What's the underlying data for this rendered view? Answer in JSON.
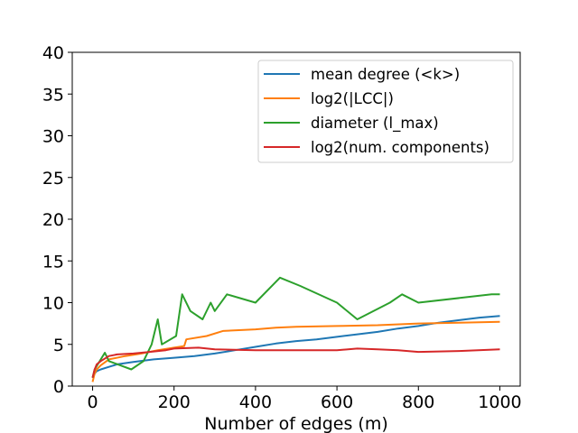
{
  "chart_data": {
    "type": "line",
    "title": "",
    "xlabel": "Number of edges (m)",
    "ylabel": "",
    "xlim": [
      -50,
      1050
    ],
    "ylim": [
      0,
      40
    ],
    "xticks": [
      0,
      200,
      400,
      600,
      800,
      1000
    ],
    "yticks": [
      0,
      5,
      10,
      15,
      20,
      25,
      30,
      35,
      40
    ],
    "grid": false,
    "legend_position": "top-right",
    "series": [
      {
        "name": "mean degree (<k>)",
        "color": "#1f77b4",
        "x": [
          0,
          5,
          10,
          20,
          40,
          60,
          100,
          150,
          200,
          250,
          300,
          350,
          400,
          450,
          500,
          550,
          600,
          650,
          700,
          750,
          800,
          850,
          900,
          950,
          1000
        ],
        "y": [
          1.0,
          1.5,
          1.8,
          2.0,
          2.3,
          2.6,
          2.9,
          3.2,
          3.4,
          3.6,
          3.9,
          4.3,
          4.7,
          5.1,
          5.4,
          5.6,
          5.9,
          6.2,
          6.5,
          6.9,
          7.2,
          7.6,
          7.9,
          8.2,
          8.4
        ]
      },
      {
        "name": "log2(|LCC|)",
        "color": "#ff7f0e",
        "x": [
          0,
          5,
          10,
          20,
          40,
          80,
          120,
          160,
          200,
          225,
          230,
          280,
          320,
          400,
          450,
          500,
          600,
          700,
          800,
          900,
          1000
        ],
        "y": [
          0.5,
          1.5,
          2.0,
          2.5,
          3.2,
          3.6,
          3.9,
          4.3,
          4.6,
          4.8,
          5.6,
          6.0,
          6.6,
          6.8,
          7.0,
          7.1,
          7.2,
          7.3,
          7.5,
          7.6,
          7.7
        ]
      },
      {
        "name": "diameter (l_max)",
        "color": "#2ca02c",
        "x": [
          0,
          5,
          30,
          40,
          95,
          125,
          145,
          160,
          170,
          205,
          220,
          240,
          270,
          290,
          300,
          330,
          400,
          460,
          510,
          600,
          650,
          730,
          760,
          800,
          980,
          1000
        ],
        "y": [
          1,
          2,
          4,
          3,
          2,
          3,
          5,
          8,
          5,
          6,
          11,
          9,
          8,
          10,
          9,
          11,
          10,
          13,
          12,
          10,
          8,
          10,
          11,
          10,
          11,
          11
        ]
      },
      {
        "name": "log2(num. components)",
        "color": "#d62728",
        "x": [
          0,
          5,
          10,
          20,
          40,
          60,
          100,
          140,
          180,
          200,
          260,
          300,
          400,
          500,
          600,
          650,
          700,
          750,
          800,
          900,
          1000
        ],
        "y": [
          1.0,
          2.0,
          2.6,
          3.0,
          3.6,
          3.8,
          3.9,
          4.1,
          4.3,
          4.5,
          4.6,
          4.4,
          4.3,
          4.3,
          4.3,
          4.5,
          4.4,
          4.3,
          4.1,
          4.2,
          4.4
        ]
      }
    ]
  }
}
